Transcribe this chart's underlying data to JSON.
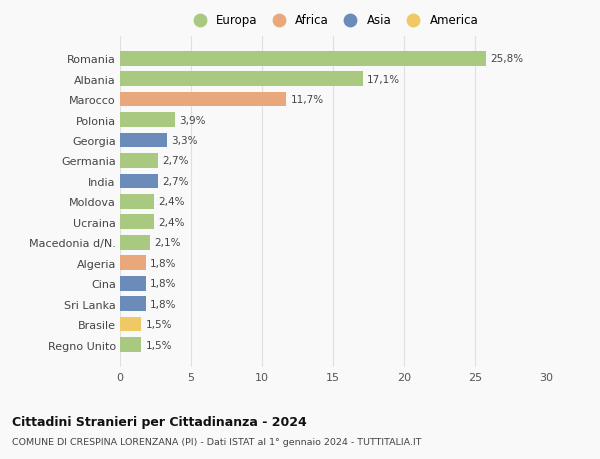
{
  "categories": [
    "Romania",
    "Albania",
    "Marocco",
    "Polonia",
    "Georgia",
    "Germania",
    "India",
    "Moldova",
    "Ucraina",
    "Macedonia d/N.",
    "Algeria",
    "Cina",
    "Sri Lanka",
    "Brasile",
    "Regno Unito"
  ],
  "values": [
    25.8,
    17.1,
    11.7,
    3.9,
    3.3,
    2.7,
    2.7,
    2.4,
    2.4,
    2.1,
    1.8,
    1.8,
    1.8,
    1.5,
    1.5
  ],
  "labels": [
    "25,8%",
    "17,1%",
    "11,7%",
    "3,9%",
    "3,3%",
    "2,7%",
    "2,7%",
    "2,4%",
    "2,4%",
    "2,1%",
    "1,8%",
    "1,8%",
    "1,8%",
    "1,5%",
    "1,5%"
  ],
  "continents": [
    "Europa",
    "Europa",
    "Africa",
    "Europa",
    "Asia",
    "Europa",
    "Asia",
    "Europa",
    "Europa",
    "Europa",
    "Africa",
    "Asia",
    "Asia",
    "America",
    "Europa"
  ],
  "continent_colors": {
    "Europa": "#a8c97f",
    "Africa": "#e8a87c",
    "Asia": "#6b8cba",
    "America": "#f0c965"
  },
  "legend_order": [
    "Europa",
    "Africa",
    "Asia",
    "America"
  ],
  "title": "Cittadini Stranieri per Cittadinanza - 2024",
  "subtitle": "COMUNE DI CRESPINA LORENZANA (PI) - Dati ISTAT al 1° gennaio 2024 - TUTTITALIA.IT",
  "xlim": [
    0,
    30
  ],
  "xticks": [
    0,
    5,
    10,
    15,
    20,
    25,
    30
  ],
  "background_color": "#f9f9f9",
  "grid_color": "#e0e0e0"
}
